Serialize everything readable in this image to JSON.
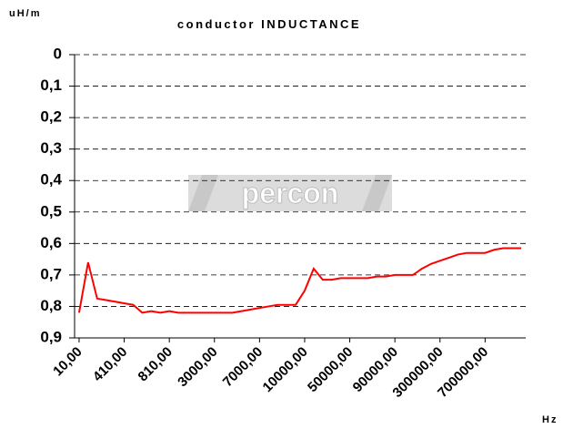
{
  "chart_data": {
    "type": "line",
    "title": "conductor INDUCTANCE",
    "y_unit": "uH/m",
    "x_label": "Hz",
    "watermark": "percon",
    "categories": [
      "10,00",
      null,
      null,
      null,
      null,
      "410,00",
      null,
      null,
      null,
      null,
      "810,00",
      null,
      null,
      null,
      null,
      "3000,00",
      null,
      null,
      null,
      null,
      "7000,00",
      null,
      null,
      null,
      null,
      "10000,00",
      null,
      null,
      null,
      null,
      "50000,00",
      null,
      null,
      null,
      null,
      "90000,00",
      null,
      null,
      null,
      null,
      "300000,00",
      null,
      null,
      null,
      null,
      "700000,00",
      null,
      null,
      null,
      null
    ],
    "values": [
      0.82,
      0.66,
      0.775,
      0.78,
      0.785,
      0.79,
      0.795,
      0.82,
      0.815,
      0.82,
      0.815,
      0.82,
      0.82,
      0.82,
      0.82,
      0.82,
      0.82,
      0.82,
      0.815,
      0.81,
      0.805,
      0.8,
      0.795,
      0.795,
      0.795,
      0.75,
      0.68,
      0.715,
      0.715,
      0.71,
      0.71,
      0.71,
      0.71,
      0.705,
      0.705,
      0.7,
      0.7,
      0.7,
      0.68,
      0.665,
      0.655,
      0.645,
      0.635,
      0.63,
      0.63,
      0.63,
      0.62,
      0.615,
      0.615,
      0.615
    ],
    "color": "#ff0000",
    "ylim": [
      0,
      0.9
    ],
    "y_inverted": true,
    "yticks": [
      0,
      {
        "value": 0.1,
        "label": "0,1"
      },
      {
        "value": 0.2,
        "label": "0,2"
      },
      {
        "value": 0.3,
        "label": "0,3"
      },
      {
        "value": 0.4,
        "label": "0,4"
      },
      {
        "value": 0.5,
        "label": "0,5"
      },
      {
        "value": 0.6,
        "label": "0,6"
      },
      {
        "value": 0.7,
        "label": "0,7"
      },
      {
        "value": 0.8,
        "label": "0,8"
      },
      {
        "value": 0.9,
        "label": "0,9"
      }
    ],
    "grid": true
  }
}
